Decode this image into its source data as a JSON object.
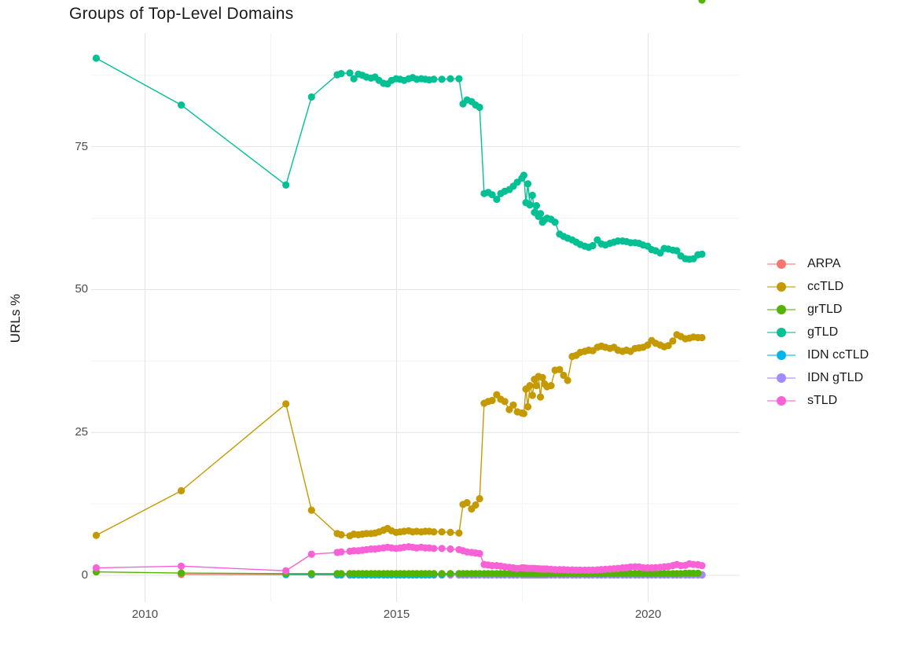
{
  "page": {
    "background": "#ffffff"
  },
  "style": {
    "grid_major_color": "#e4e4e4",
    "grid_minor_color": "#f3f3f3",
    "tick_text_color": "#4d4d4d",
    "text_color": "#1a1a1a"
  },
  "chart_data": {
    "type": "line",
    "title": "Groups of Top-Level Domains",
    "xlabel": "",
    "ylabel": "URLs %",
    "xlim": [
      2008.93,
      2021.82
    ],
    "ylim": [
      -4.68,
      94.9
    ],
    "grid": "major+minor",
    "legend_position": "right",
    "marker": "point-on-line",
    "axes": {
      "x_ticks": [
        {
          "value": 2010,
          "label": "2010"
        },
        {
          "value": 2015,
          "label": "2015"
        },
        {
          "value": 2020,
          "label": "2020"
        }
      ],
      "y_ticks": [
        {
          "value": 0,
          "label": "0"
        },
        {
          "value": 25,
          "label": "25"
        },
        {
          "value": 50,
          "label": "50"
        },
        {
          "value": 75,
          "label": "75"
        }
      ],
      "x_minor": [
        2012.5,
        2017.5
      ],
      "y_minor": [
        12.5,
        37.5,
        62.5,
        87.5
      ]
    },
    "x_grid": [
      2013.82,
      2013.9,
      2014.07,
      2014.15,
      2014.24,
      2014.32,
      2014.4,
      2014.49,
      2014.57,
      2014.65,
      2014.74,
      2014.82,
      2014.9,
      2014.99,
      2015.07,
      2015.15,
      2015.24,
      2015.32,
      2015.4,
      2015.49,
      2015.57,
      2015.65,
      2015.74,
      2015.9,
      2016.07,
      2016.24,
      2016.32,
      2016.4,
      2016.49,
      2016.57,
      2016.65,
      2016.74,
      2016.82,
      2016.9,
      2016.99,
      2017.07,
      2017.15,
      2017.24,
      2017.32,
      2017.4,
      2017.49,
      2017.53,
      2017.57,
      2017.61,
      2017.65,
      2017.7,
      2017.74,
      2017.78,
      2017.82,
      2017.86,
      2017.9,
      2017.94,
      2017.99,
      2018.07,
      2018.15,
      2018.24,
      2018.32,
      2018.4,
      2018.49,
      2018.57,
      2018.65,
      2018.74,
      2018.82,
      2018.9,
      2018.99,
      2019.07,
      2019.15,
      2019.24,
      2019.32,
      2019.4,
      2019.49,
      2019.57,
      2019.65,
      2019.74,
      2019.82,
      2019.9,
      2019.99,
      2020.07,
      2020.15,
      2020.24,
      2020.32,
      2020.4,
      2020.49,
      2020.57,
      2020.65,
      2020.74,
      2020.82,
      2020.9,
      2020.99,
      2021.07
    ],
    "series": [
      {
        "name": "ARPA",
        "color": "#F8766D",
        "z": 1,
        "x_pre": [
          2010.72,
          2012.8,
          2013.31
        ],
        "grid_offset": 0,
        "y": [
          0.15,
          0.1,
          0.08,
          0.05,
          0.05,
          0.05,
          0.05,
          0.05,
          0.05,
          0.05,
          0.05,
          0.05,
          0.05,
          0.05,
          0.05,
          0.05,
          0.05,
          0.05,
          0.05,
          0.05,
          0.05,
          0.05,
          0.05,
          0.05,
          0.05,
          0.05,
          0.05,
          0.05,
          0.05,
          0.05,
          0.05,
          0.05,
          0.05,
          0.05,
          0.05,
          0.05,
          0.05,
          0.05,
          0.05,
          0.05,
          0.05,
          0.05,
          0.05,
          0.05,
          0.05,
          0.05,
          0.05,
          0.05,
          0.05,
          0.05,
          0.05,
          0.05,
          0.05,
          0.05,
          0.05,
          0.05,
          0.05,
          0.05,
          0.05,
          0.05,
          0.05,
          0.05,
          0.05,
          0.05,
          0.05,
          0.05,
          0.05,
          0.05,
          0.05,
          0.05,
          0.05,
          0.05,
          0.05,
          0.05,
          0.05,
          0.05,
          0.05,
          0.05,
          0.05,
          0.05,
          0.05,
          0.05,
          0.05,
          0.05,
          0.05,
          0.05,
          0.05,
          0.05,
          0.05,
          0.05,
          0.05,
          0.05,
          0.05
        ]
      },
      {
        "name": "ccTLD",
        "color": "#C49A00",
        "z": 2,
        "x_pre": [
          2009.03,
          2010.72,
          2012.8,
          2013.31
        ],
        "grid_offset": 0,
        "y": [
          7.0,
          14.8,
          30.0,
          11.4,
          7.3,
          7.1,
          6.9,
          7.2,
          7.1,
          7.2,
          7.3,
          7.3,
          7.4,
          7.6,
          7.9,
          8.2,
          7.8,
          7.5,
          7.6,
          7.7,
          7.8,
          7.6,
          7.7,
          7.6,
          7.7,
          7.7,
          7.6,
          7.6,
          7.5,
          7.4,
          12.4,
          12.7,
          11.6,
          12.3,
          13.4,
          30.1,
          30.4,
          30.6,
          31.6,
          30.8,
          30.4,
          29.0,
          29.8,
          28.6,
          28.4,
          28.3,
          32.6,
          29.5,
          33.2,
          31.5,
          34.3,
          33.2,
          34.8,
          31.2,
          34.6,
          33.5,
          33.0,
          33.2,
          35.9,
          36.0,
          35.0,
          34.1,
          38.3,
          38.5,
          39.0,
          39.2,
          39.4,
          39.3,
          39.9,
          40.1,
          39.9,
          39.7,
          39.9,
          39.4,
          39.2,
          39.4,
          39.2,
          39.7,
          39.8,
          39.9,
          40.3,
          41.1,
          40.6,
          40.3,
          40.0,
          40.2,
          41.0,
          42.1,
          41.8,
          41.4,
          41.5,
          41.7,
          41.6,
          41.6
        ]
      },
      {
        "name": "grTLD",
        "color": "#53B400",
        "z": 5,
        "x_pre": [
          2009.03,
          2010.72,
          2012.8,
          2013.31
        ],
        "grid_offset": 0,
        "y": [
          0.6,
          0.4,
          0.3,
          0.3,
          0.3,
          0.3,
          0.3,
          0.3,
          0.3,
          0.3,
          0.3,
          0.3,
          0.3,
          0.3,
          0.3,
          0.3,
          0.3,
          0.3,
          0.3,
          0.3,
          0.3,
          0.3,
          0.3,
          0.3,
          0.3,
          0.3,
          0.3,
          0.3,
          0.3,
          0.3,
          0.3,
          0.3,
          0.3,
          0.3,
          0.3,
          0.3,
          0.3,
          0.3,
          0.3,
          0.3,
          0.3,
          0.3,
          0.3,
          0.3,
          0.3,
          0.3,
          0.3,
          0.3,
          0.3,
          0.3,
          0.3,
          0.3,
          0.3,
          0.3,
          0.3,
          0.3,
          0.3,
          0.3,
          0.3,
          0.3,
          0.3,
          0.3,
          0.3,
          0.3,
          0.3,
          0.3,
          0.3,
          0.3,
          0.3,
          0.3,
          0.3,
          0.3,
          0.3,
          0.3,
          0.3,
          0.3,
          0.3,
          0.3,
          0.3,
          0.3,
          0.3,
          0.3,
          0.3,
          0.3,
          0.3,
          0.3,
          0.3,
          0.3,
          0.3,
          0.35,
          0.35,
          0.35,
          0.35
        ]
      },
      {
        "name": "gTLD",
        "color": "#00C094",
        "z": 6,
        "x_pre": [
          2009.03,
          2010.72,
          2012.8,
          2013.31
        ],
        "grid_offset": 0,
        "y": [
          90.5,
          82.3,
          68.3,
          83.7,
          87.6,
          87.8,
          87.9,
          86.9,
          87.7,
          87.5,
          87.2,
          87.0,
          87.2,
          86.6,
          86.1,
          86.0,
          86.6,
          86.9,
          86.8,
          86.6,
          86.9,
          87.1,
          86.8,
          86.9,
          86.8,
          86.7,
          86.8,
          86.8,
          86.9,
          86.9,
          82.5,
          83.2,
          82.9,
          82.3,
          81.9,
          66.8,
          67.0,
          66.6,
          65.8,
          66.8,
          67.2,
          67.5,
          68.1,
          68.8,
          69.5,
          70.0,
          65.2,
          68.5,
          64.8,
          66.5,
          63.5,
          64.7,
          62.8,
          63.3,
          61.8,
          62.2,
          62.5,
          62.3,
          61.8,
          59.7,
          59.3,
          59.0,
          58.7,
          58.3,
          57.9,
          57.6,
          57.4,
          57.7,
          58.7,
          58.0,
          57.8,
          58.1,
          58.3,
          58.5,
          58.5,
          58.4,
          58.2,
          58.2,
          58.1,
          57.8,
          57.6,
          57.0,
          56.8,
          56.4,
          57.2,
          57.1,
          56.9,
          56.8,
          55.9,
          55.4,
          55.3,
          55.4,
          56.1,
          56.2
        ]
      },
      {
        "name": "IDN ccTLD",
        "color": "#00B6EB",
        "z": 3,
        "x_pre": [
          2012.8,
          2013.31
        ],
        "grid_offset": 0,
        "y": [
          0.15,
          0.12,
          0.1,
          0.1,
          0.1,
          0.1,
          0.1,
          0.1,
          0.1,
          0.1,
          0.1,
          0.1,
          0.1,
          0.1,
          0.1,
          0.1,
          0.1,
          0.1,
          0.1,
          0.1,
          0.1,
          0.1,
          0.1,
          0.1,
          0.1,
          0.1,
          0.1,
          0.1,
          0.1,
          0.1,
          0.1,
          0.1,
          0.1,
          0.1,
          0.1,
          0.1,
          0.1,
          0.1,
          0.1,
          0.1,
          0.1,
          0.1,
          0.1,
          0.1,
          0.1,
          0.1,
          0.1,
          0.1,
          0.1,
          0.1,
          0.1,
          0.1,
          0.1,
          0.1,
          0.1,
          0.1,
          0.1,
          0.1,
          0.1,
          0.1,
          0.1,
          0.1,
          0.1,
          0.1,
          0.1,
          0.1,
          0.1,
          0.1,
          0.1,
          0.1,
          0.1,
          0.1,
          0.1,
          0.1,
          0.1,
          0.1,
          0.1,
          0.1,
          0.1,
          0.1,
          0.1,
          0.1,
          0.1,
          0.1,
          0.1,
          0.1,
          0.1,
          0.1,
          0.1,
          0.1,
          0.1,
          0.1
        ]
      },
      {
        "name": "IDN gTLD",
        "color": "#A58AFF",
        "z": 4,
        "x_pre": [],
        "grid_offset": 24,
        "y": [
          0.08,
          0.08,
          0.08,
          0.08,
          0.08,
          0.08,
          0.08,
          0.08,
          0.08,
          0.08,
          0.08,
          0.08,
          0.08,
          0.08,
          0.08,
          0.08,
          0.08,
          0.08,
          0.08,
          0.08,
          0.08,
          0.08,
          0.08,
          0.08,
          0.08,
          0.08,
          0.08,
          0.08,
          0.08,
          0.08,
          0.08,
          0.08,
          0.08,
          0.08,
          0.08,
          0.08,
          0.08,
          0.08,
          0.08,
          0.08,
          0.08,
          0.08,
          0.08,
          0.08,
          0.08,
          0.08,
          0.08,
          0.08,
          0.08,
          0.08,
          0.08,
          0.08,
          0.08,
          0.08,
          0.08,
          0.08,
          0.08,
          0.08,
          0.08,
          0.08,
          0.08,
          0.08,
          0.08,
          0.08,
          0.08,
          0.08
        ]
      },
      {
        "name": "sTLD",
        "color": "#FB61D7",
        "z": 7,
        "x_pre": [
          2009.03,
          2010.72,
          2012.8,
          2013.31
        ],
        "grid_offset": 0,
        "y": [
          1.3,
          1.6,
          0.8,
          3.7,
          4.0,
          4.1,
          4.2,
          4.3,
          4.3,
          4.4,
          4.5,
          4.6,
          4.6,
          4.7,
          4.8,
          4.9,
          4.8,
          4.7,
          4.8,
          4.9,
          5.0,
          4.9,
          4.8,
          4.9,
          4.8,
          4.8,
          4.7,
          4.7,
          4.6,
          4.5,
          4.3,
          4.1,
          4.0,
          3.9,
          3.8,
          1.9,
          1.8,
          1.7,
          1.7,
          1.6,
          1.5,
          1.4,
          1.3,
          1.2,
          1.3,
          1.3,
          1.25,
          1.2,
          1.2,
          1.2,
          1.2,
          1.15,
          1.15,
          1.1,
          1.1,
          1.1,
          1.1,
          1.05,
          1.0,
          1.0,
          1.0,
          0.95,
          0.95,
          0.9,
          0.9,
          0.9,
          0.9,
          0.9,
          0.95,
          1.0,
          1.05,
          1.1,
          1.15,
          1.2,
          1.3,
          1.35,
          1.45,
          1.5,
          1.45,
          1.35,
          1.3,
          1.3,
          1.35,
          1.4,
          1.5,
          1.55,
          1.7,
          1.9,
          1.7,
          1.75,
          2.0,
          1.9,
          1.85,
          1.7
        ]
      }
    ]
  }
}
